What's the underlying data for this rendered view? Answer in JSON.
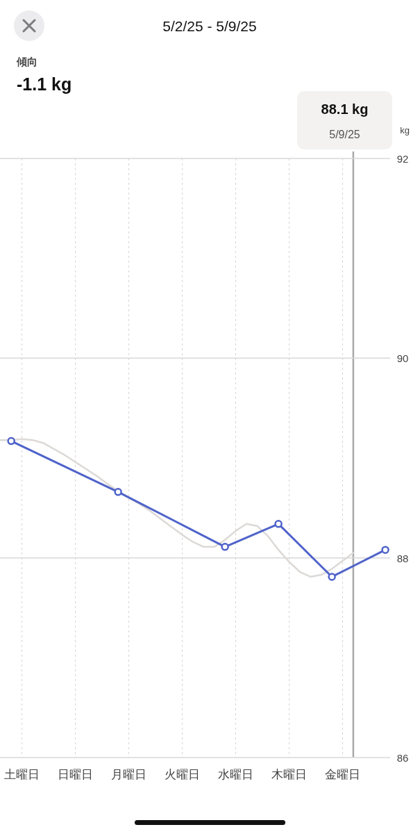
{
  "chart_data": {
    "type": "line",
    "title": "5/2/25 - 5/9/25",
    "subtitle": "傾向",
    "annotations": [
      "-1.1 kg",
      "88.1 kg",
      "5/9/25"
    ],
    "ylabel": "kg",
    "categories": [
      null,
      null,
      "土曜日",
      null,
      null,
      null,
      null,
      "日曜日",
      null,
      null,
      null,
      null,
      "月曜日",
      null,
      null,
      null,
      null,
      "火曜日",
      null,
      null,
      null,
      null,
      "水曜日",
      null,
      null,
      null,
      null,
      "木曜日",
      null,
      null,
      null,
      null,
      "金曜日",
      null,
      null,
      null,
      null
    ],
    "ylim": [
      86,
      92
    ],
    "yticks": [
      86,
      88,
      90,
      92
    ],
    "grid": true,
    "series": [
      {
        "type": "line",
        "color": "#dcd9d6",
        "marker": "none",
        "values": [
          89.18,
          89.18,
          89.19,
          89.18,
          89.15,
          89.09,
          89.03,
          88.96,
          88.89,
          88.82,
          88.74,
          88.67,
          88.6,
          88.54,
          88.47,
          88.39,
          88.31,
          88.23,
          88.16,
          88.11,
          88.11,
          88.18,
          88.27,
          88.34,
          88.32,
          88.22,
          88.08,
          87.96,
          87.86,
          87.81,
          87.83,
          87.89,
          87.97,
          88.05,
          null,
          null,
          null
        ]
      },
      {
        "type": "line",
        "color": "#4f63c9",
        "marker": "circle",
        "values": [
          null,
          89.17,
          null,
          null,
          null,
          null,
          null,
          null,
          null,
          null,
          null,
          88.66,
          null,
          null,
          null,
          null,
          null,
          null,
          null,
          null,
          null,
          88.11,
          null,
          null,
          null,
          null,
          88.34,
          null,
          null,
          null,
          null,
          87.81,
          null,
          null,
          null,
          null,
          88.08
        ]
      }
    ]
  }
}
